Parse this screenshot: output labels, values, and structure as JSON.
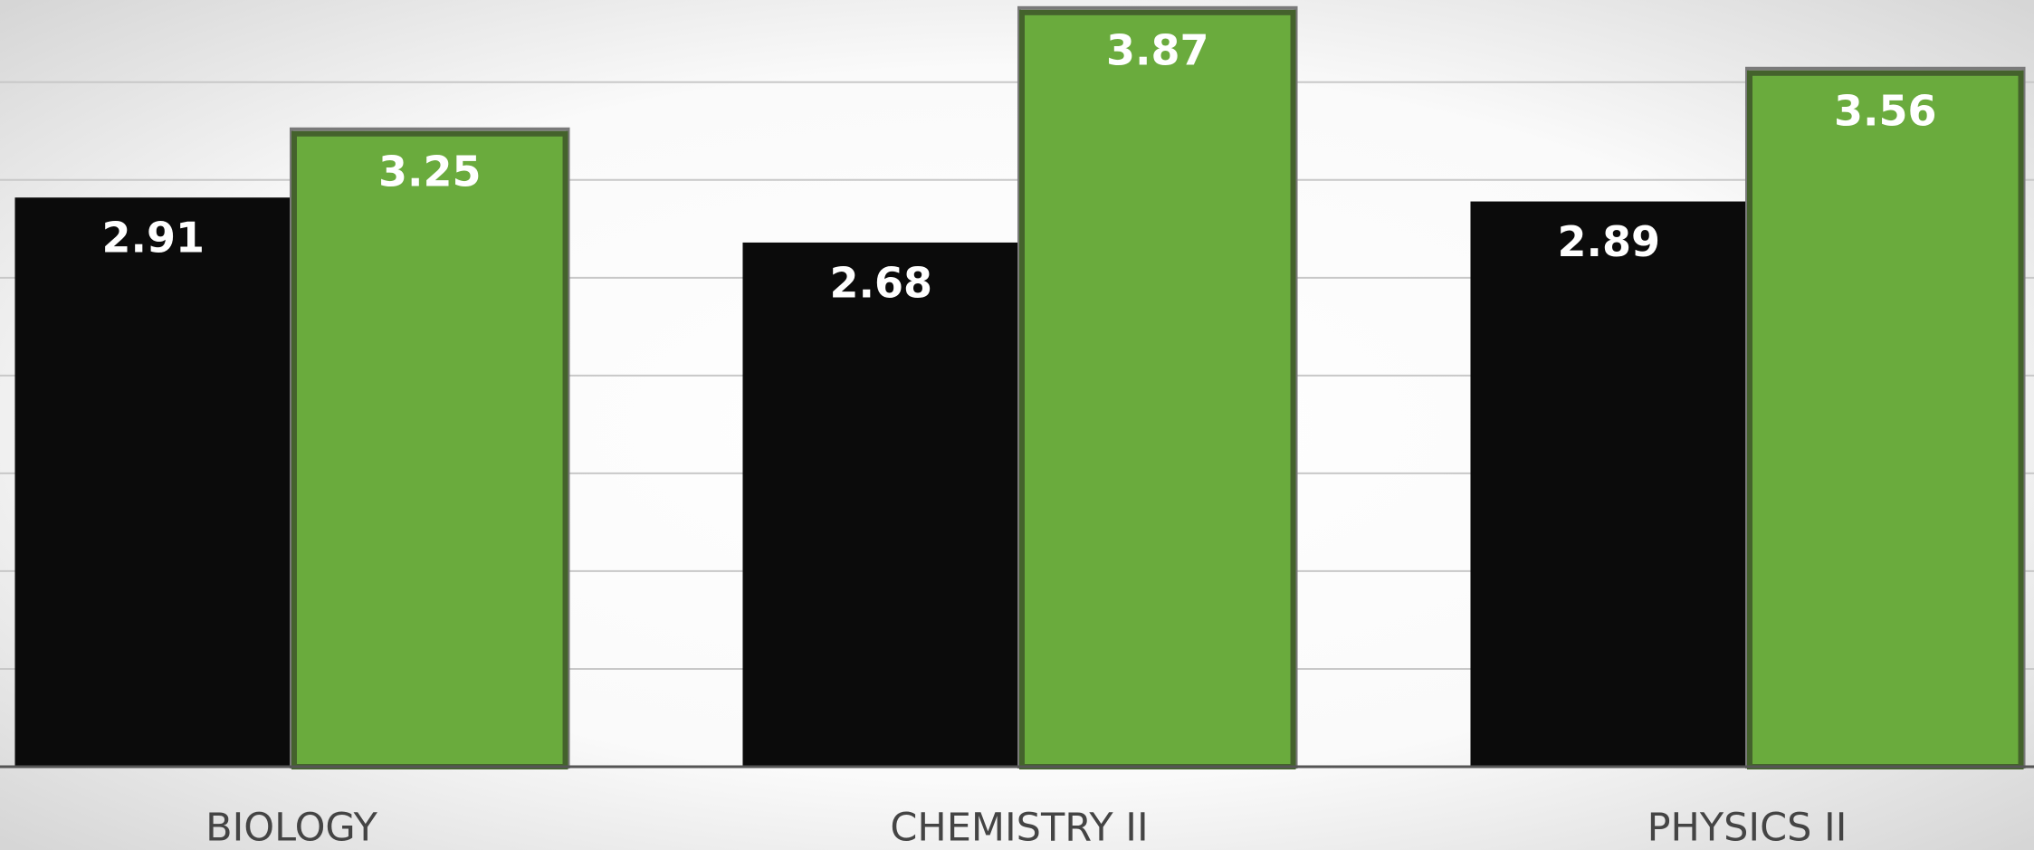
{
  "chart_data": {
    "type": "bar",
    "categories": [
      "BIOLOGY",
      "CHEMISTRY II",
      "PHYSICS II"
    ],
    "series": [
      {
        "color": "#0b0b0b",
        "values": [
          2.91,
          2.68,
          2.89
        ]
      },
      {
        "color": "#6aab3d",
        "values": [
          3.25,
          3.87,
          3.56
        ]
      }
    ],
    "ylim": [
      0,
      3.92
    ],
    "yticks": [
      0,
      0.5,
      1,
      1.5,
      2,
      2.5,
      3,
      3.5
    ],
    "grid": true
  }
}
